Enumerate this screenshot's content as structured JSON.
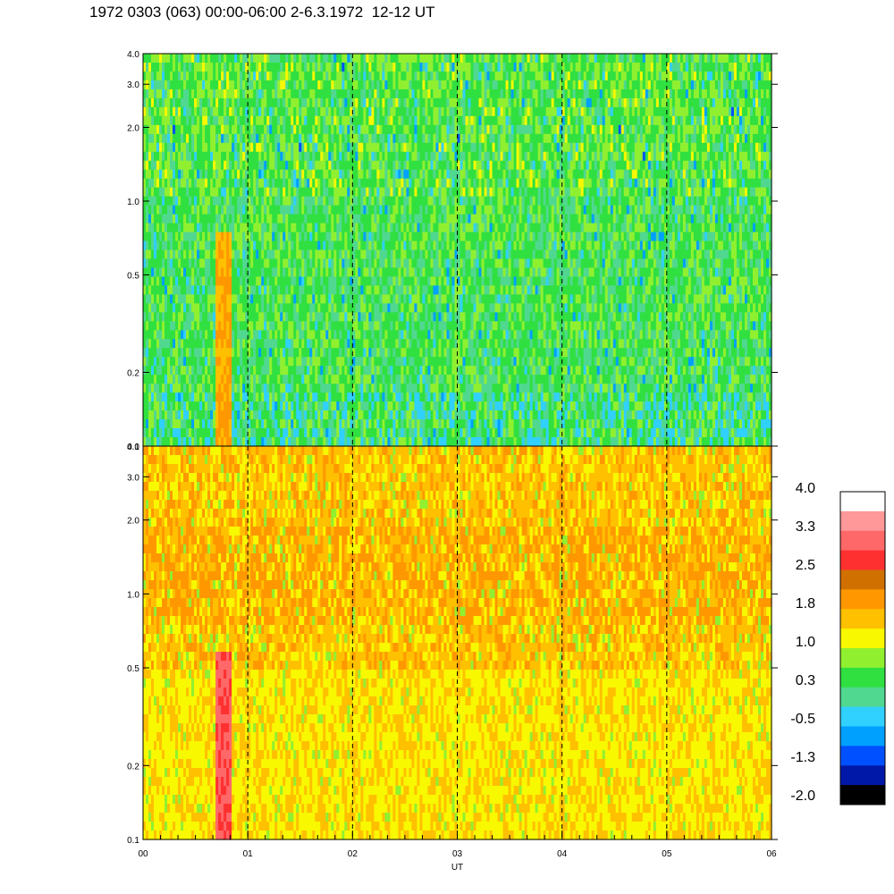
{
  "title": "1972 0303 (063) 00:00-06:00 2-6.3.1972  12-12 UT",
  "colors": {
    "scale": [
      "#000000",
      "#0018a8",
      "#0050ff",
      "#00a0ff",
      "#30d0ff",
      "#50d890",
      "#30e040",
      "#90f030",
      "#f8f800",
      "#ffc000",
      "#ff9800",
      "#d07000",
      "#ff3030",
      "#ff6868",
      "#ff9898",
      "#ffffff"
    ]
  },
  "chart_data": [
    {
      "type": "heatmap",
      "panel": "top",
      "x": [
        "00",
        "01",
        "02",
        "03",
        "04",
        "05",
        "06"
      ],
      "xlim": [
        0,
        6
      ],
      "y_ticks": [
        "0.1",
        "0.2",
        "0.5",
        "1.0",
        "2.0",
        "3.0",
        "4.0"
      ],
      "ylim": [
        0.1,
        4.0
      ],
      "y_scale": "log",
      "grid": "dashed vertical at each hour",
      "dominant_levels": "mostly 0.3 to 1.0 (green), blue streaks to -1.3, orange streak near 00:45"
    },
    {
      "type": "heatmap",
      "panel": "bottom",
      "x": [
        "00",
        "01",
        "02",
        "03",
        "04",
        "05",
        "06"
      ],
      "xlim": [
        0,
        6
      ],
      "y_ticks": [
        "0.1",
        "0.2",
        "0.5",
        "1.0",
        "2.0",
        "3.0",
        "4.0"
      ],
      "ylim": [
        0.1,
        4.0
      ],
      "y_scale": "log",
      "grid": "dashed vertical at each hour",
      "xlabel": "UT",
      "dominant_levels": "mostly 1.0 to 1.8 (yellow-orange), red streak near 00:45, green 0.3 patches"
    }
  ],
  "colorbar": {
    "labels": [
      "4.0",
      "3.3",
      "2.5",
      "1.8",
      "1.0",
      "0.3",
      "-0.5",
      "-1.3",
      "-2.0"
    ]
  }
}
